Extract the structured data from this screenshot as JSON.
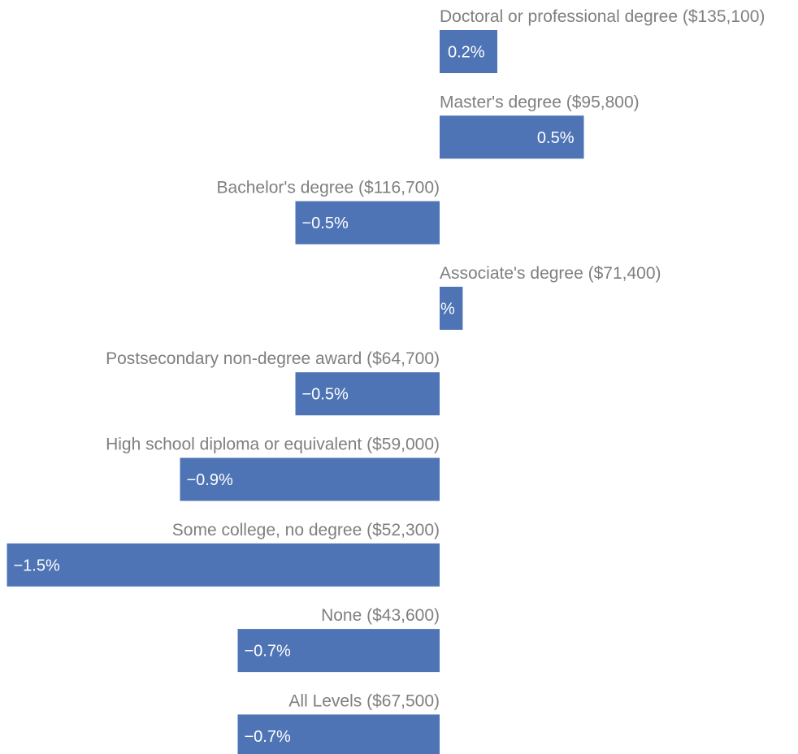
{
  "colors": {
    "bar": "#4e74b5",
    "label_text": "#7f7f7f",
    "value_text": "#ffffff",
    "background": "#ffffff"
  },
  "chart_data": {
    "type": "bar",
    "orientation": "horizontal",
    "title": "",
    "xlabel": "",
    "ylabel": "",
    "grid": false,
    "legend": "none",
    "categories": [
      "Doctoral or professional degree ($135,100)",
      "Master's degree ($95,800)",
      "Bachelor's degree ($116,700)",
      "Associate's degree ($71,400)",
      "Postsecondary non-degree award ($64,700)",
      "High school diploma or equivalent ($59,000)",
      "Some college, no degree ($52,300)",
      "None ($43,600)",
      "All Levels ($67,500)"
    ],
    "values": [
      0.2,
      0.5,
      -0.5,
      0.08,
      -0.5,
      -0.9,
      -1.5,
      -0.7,
      -0.7
    ],
    "value_labels": [
      "0.2%",
      "0.5%",
      "−0.5%",
      "%",
      "−0.5%",
      "−0.9%",
      "−1.5%",
      "−0.7%",
      "−0.7%"
    ],
    "xlim": [
      -1.5,
      1.25
    ]
  }
}
